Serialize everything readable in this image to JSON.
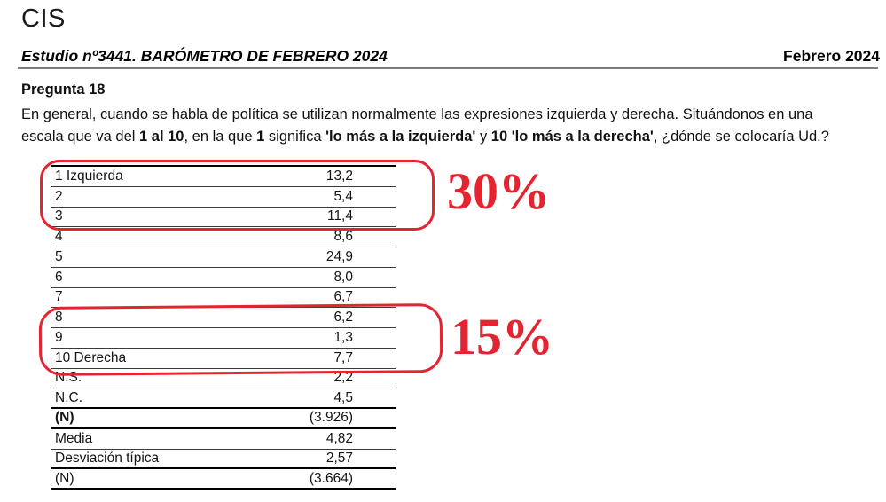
{
  "header": {
    "logo": "CIS",
    "study_line": "Estudio nº3441. BARÓMETRO DE FEBRERO 2024",
    "date": "Febrero 2024"
  },
  "question": {
    "title": "Pregunta 18",
    "lines": [
      {
        "segments": [
          {
            "t": "En general, cuando se habla de política se utilizan normalmente las expresiones izquierda y derecha. Situándonos en una",
            "b": false
          }
        ]
      },
      {
        "segments": [
          {
            "t": "escala que va del ",
            "b": false
          },
          {
            "t": "1 al 10",
            "b": true
          },
          {
            "t": ", en la que ",
            "b": false
          },
          {
            "t": "1",
            "b": true
          },
          {
            "t": " significa ",
            "b": false
          },
          {
            "t": "'lo más a la izquierda'",
            "b": true
          },
          {
            "t": " y ",
            "b": false
          },
          {
            "t": "10",
            "b": true
          },
          {
            "t": " ",
            "b": false
          },
          {
            "t": "'lo más a la derecha'",
            "b": true
          },
          {
            "t": ", ¿dónde se colocaría Ud.?",
            "b": false
          }
        ]
      }
    ]
  },
  "table": {
    "rows": [
      {
        "label": "1 Izquierda",
        "value": "13,2",
        "bold_label": false,
        "divider": "thin"
      },
      {
        "label": "2",
        "value": "5,4",
        "bold_label": false,
        "divider": "thin"
      },
      {
        "label": "3",
        "value": "11,4",
        "bold_label": false,
        "divider": "thin"
      },
      {
        "label": "4",
        "value": "8,6",
        "bold_label": false,
        "divider": "thin"
      },
      {
        "label": "5",
        "value": "24,9",
        "bold_label": false,
        "divider": "thin"
      },
      {
        "label": "6",
        "value": "8,0",
        "bold_label": false,
        "divider": "thin"
      },
      {
        "label": "7",
        "value": "6,7",
        "bold_label": false,
        "divider": "thin"
      },
      {
        "label": "8",
        "value": "6,2",
        "bold_label": false,
        "divider": "thin"
      },
      {
        "label": "9",
        "value": "1,3",
        "bold_label": false,
        "divider": "thin"
      },
      {
        "label": "10 Derecha",
        "value": "7,7",
        "bold_label": false,
        "divider": "thin"
      },
      {
        "label": "N.S.",
        "value": "2,2",
        "bold_label": false,
        "divider": "thin"
      },
      {
        "label": "N.C.",
        "value": "4,5",
        "bold_label": false,
        "divider": "thick"
      },
      {
        "label": "(N)",
        "value": "(3.926)",
        "bold_label": true,
        "divider": "thick"
      },
      {
        "label": "Media",
        "value": "4,82",
        "bold_label": false,
        "divider": "thin"
      },
      {
        "label": "Desviación típica",
        "value": "2,57",
        "bold_label": false,
        "divider": "thick"
      },
      {
        "label": "(N)",
        "value": "(3.664)",
        "bold_label": false,
        "divider": "thick"
      }
    ]
  },
  "annotations": {
    "accent_color": "#e42430",
    "left_group": {
      "label": "30%",
      "rows_circled": "1 Izquierda, 2, 3"
    },
    "right_group": {
      "label": "15%",
      "rows_circled": "8, 9, 10 Derecha"
    }
  }
}
